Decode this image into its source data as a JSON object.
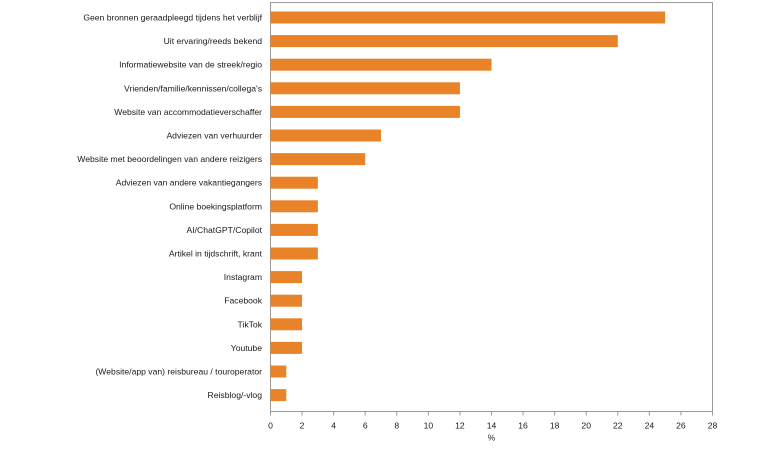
{
  "chart_data": {
    "type": "bar",
    "orientation": "horizontal",
    "categories": [
      "Geen bronnen geraadpleegd tijdens het verblijf",
      "Uit ervaring/reeds bekend",
      "Informatiewebsite van de streek/regio",
      "Vrienden/familie/kennissen/collega's",
      "Website van accommodatieverschaffer",
      "Adviezen van verhuurder",
      "Website met beoordelingen van andere reizigers",
      "Adviezen van andere vakantiegangers",
      "Online boekingsplatform",
      "AI/ChatGPT/Copilot",
      "Artikel in tijdschrift, krant",
      "Instagram",
      "Facebook",
      "TikTok",
      "Youtube",
      "(Website/app van) reisbureau / touroperator",
      "Reisblog/-vlog"
    ],
    "values": [
      25,
      22,
      14,
      12,
      12,
      7,
      6,
      3,
      3,
      3,
      3,
      2,
      2,
      2,
      2,
      1,
      1
    ],
    "xlabel": "%",
    "xlim": [
      0,
      28
    ],
    "xticks": [
      "0",
      "2",
      "4",
      "6",
      "8",
      "10",
      "12",
      "14",
      "16",
      "18",
      "20",
      "22",
      "24",
      "26",
      "28"
    ],
    "bar_color": "#E8832A",
    "grid": false,
    "legend": "none"
  }
}
